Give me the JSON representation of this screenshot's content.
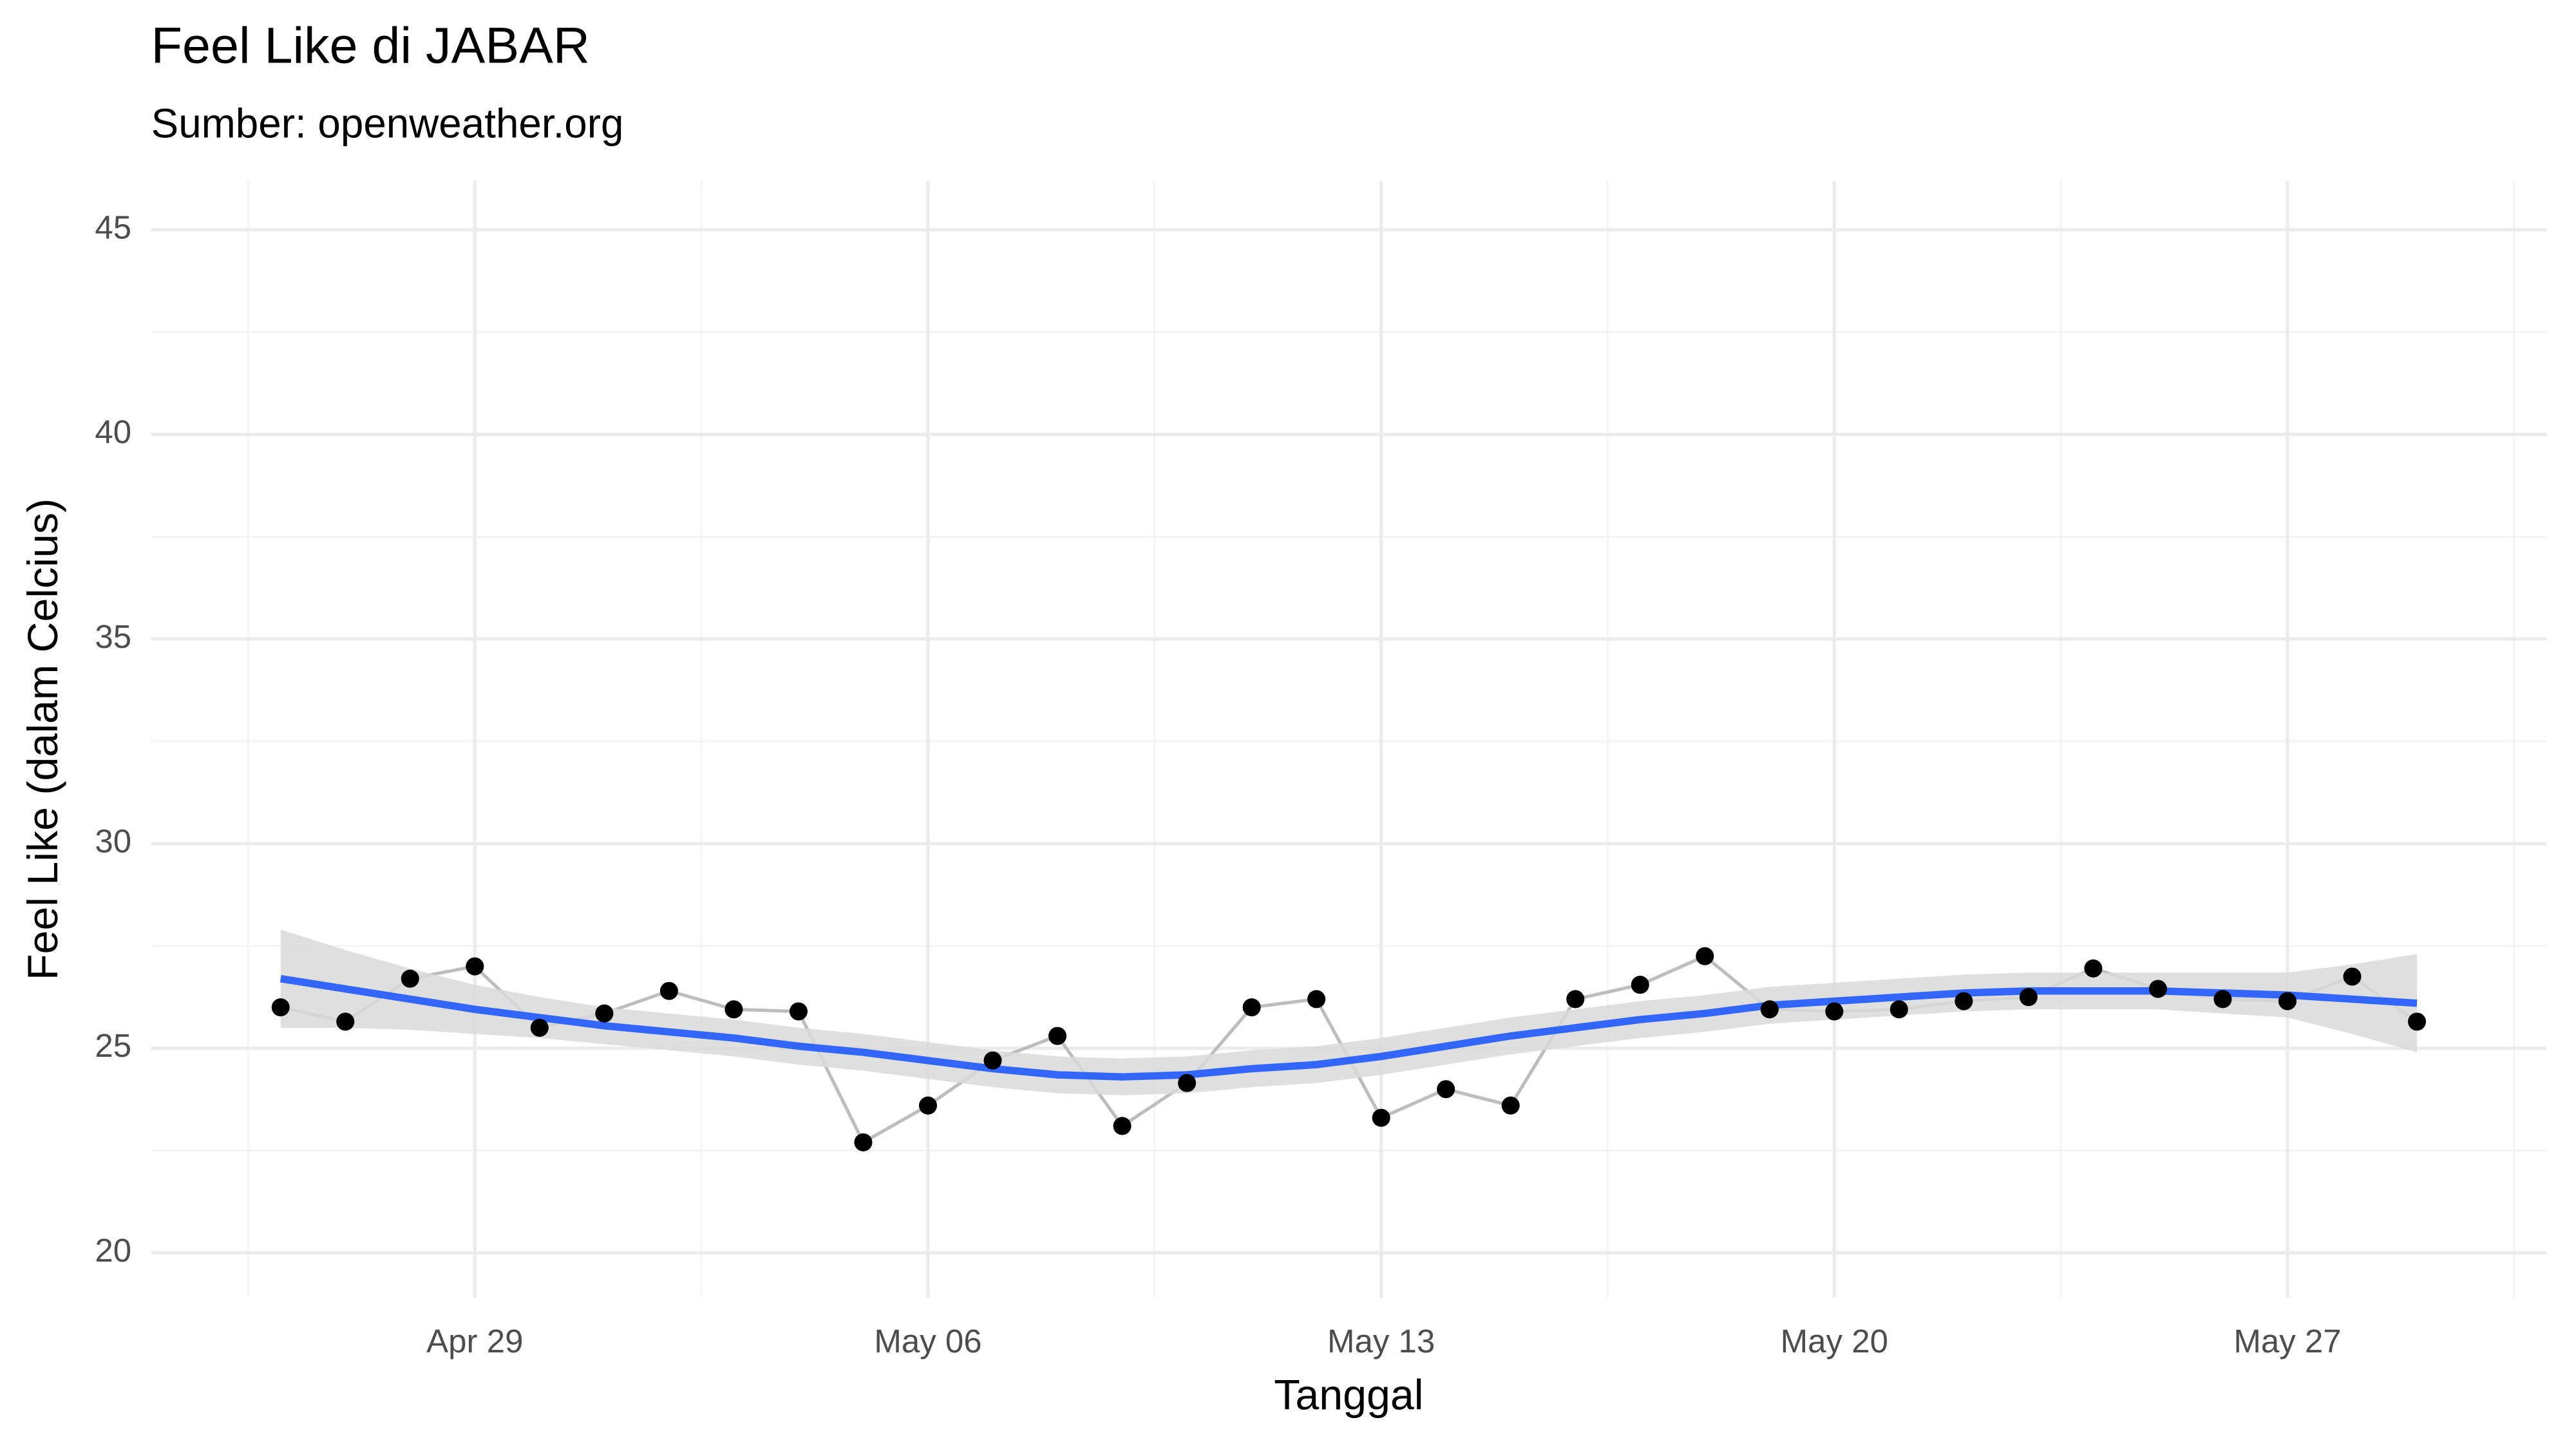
{
  "chart_data": {
    "type": "line",
    "title": "Feel Like di JABAR",
    "subtitle": "Sumber: openweather.org",
    "x_label": "Tanggal",
    "y_label": "Feel Like (dalam Celcius)",
    "x": [
      "04-26",
      "04-27",
      "04-28",
      "04-29",
      "04-30",
      "05-01",
      "05-02",
      "05-03",
      "05-04",
      "05-05",
      "05-06",
      "05-07",
      "05-08",
      "05-09",
      "05-10",
      "05-11",
      "05-12",
      "05-13",
      "05-14",
      "05-15",
      "05-16",
      "05-17",
      "05-18",
      "05-19",
      "05-20",
      "05-21",
      "05-22",
      "05-23",
      "05-24",
      "05-25",
      "05-26",
      "05-27",
      "05-28",
      "05-29"
    ],
    "series": [
      {
        "color": "#bdbdbd",
        "point_color": "#000000",
        "values": [
          26.0,
          25.65,
          26.7,
          27.0,
          25.5,
          25.85,
          26.4,
          25.95,
          25.9,
          22.7,
          23.6,
          24.7,
          25.3,
          23.1,
          24.15,
          26.0,
          26.2,
          23.3,
          24.0,
          23.6,
          26.2,
          26.55,
          27.25,
          25.95,
          25.9,
          25.95,
          26.15,
          26.25,
          26.95,
          26.45,
          26.2,
          26.15,
          26.75,
          25.65
        ]
      },
      {
        "color": "#3366ff",
        "band_color": "#d9d9d9",
        "values": [
          26.7,
          26.45,
          26.2,
          25.95,
          25.75,
          25.55,
          25.4,
          25.25,
          25.05,
          24.9,
          24.7,
          24.5,
          24.35,
          24.3,
          24.35,
          24.5,
          24.6,
          24.8,
          25.05,
          25.3,
          25.5,
          25.7,
          25.85,
          26.05,
          26.15,
          26.25,
          26.35,
          26.4,
          26.4,
          26.4,
          26.35,
          26.3,
          26.2,
          26.1
        ],
        "lower": [
          25.5,
          25.5,
          25.45,
          25.35,
          25.25,
          25.1,
          24.95,
          24.8,
          24.6,
          24.45,
          24.25,
          24.05,
          23.9,
          23.85,
          23.9,
          24.05,
          24.15,
          24.35,
          24.6,
          24.85,
          25.05,
          25.25,
          25.4,
          25.6,
          25.7,
          25.8,
          25.9,
          25.95,
          25.95,
          25.95,
          25.85,
          25.75,
          25.35,
          24.9
        ],
        "upper": [
          27.9,
          27.4,
          26.95,
          26.55,
          26.25,
          26.0,
          25.85,
          25.7,
          25.5,
          25.35,
          25.15,
          24.95,
          24.8,
          24.75,
          24.8,
          24.95,
          25.05,
          25.25,
          25.5,
          25.75,
          25.95,
          26.15,
          26.3,
          26.5,
          26.6,
          26.7,
          26.8,
          26.85,
          26.85,
          26.85,
          26.85,
          26.85,
          27.05,
          27.3
        ]
      }
    ],
    "xlim": [
      "04-24",
      "05-31"
    ],
    "xticks": [
      {
        "value": "04-29",
        "label": "Apr 29"
      },
      {
        "value": "05-06",
        "label": "May 06"
      },
      {
        "value": "05-13",
        "label": "May 13"
      },
      {
        "value": "05-20",
        "label": "May 20"
      },
      {
        "value": "05-27",
        "label": "May 27"
      }
    ],
    "ylim": [
      18.9,
      46.2
    ],
    "yticks": [
      20,
      25,
      30,
      35,
      40,
      45
    ],
    "grid": true
  }
}
